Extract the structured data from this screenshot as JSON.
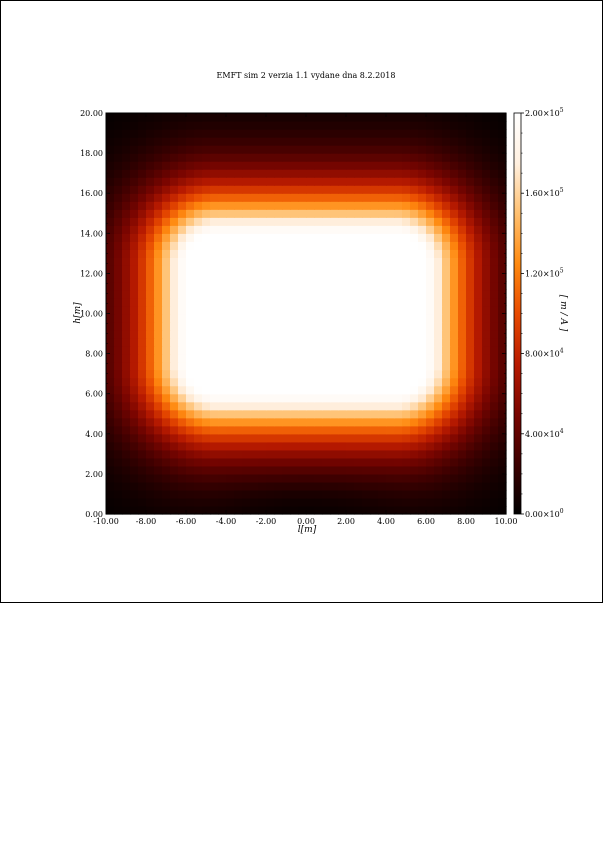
{
  "chart_data": {
    "type": "heatmap",
    "title": "EMFT sim 2 verzia 1.1 vydane dna 8.2.2018",
    "xlabel": "l[m]",
    "ylabel": "h[m]",
    "colorbar_label": "[ m / A ]",
    "xlim": [
      -10,
      10
    ],
    "ylim": [
      0,
      20
    ],
    "clim": [
      0,
      200000
    ],
    "x_ticks": [
      "-10.00",
      "-8.00",
      "-6.00",
      "-4.00",
      "-2.00",
      "0.00",
      "2.00",
      "4.00",
      "6.00",
      "8.00",
      "10.00"
    ],
    "y_ticks": [
      "0.00",
      "2.00",
      "4.00",
      "6.00",
      "8.00",
      "10.00",
      "12.00",
      "14.00",
      "16.00",
      "18.00",
      "20.00"
    ],
    "colorbar_ticks": [
      {
        "value": 0,
        "mantissa": "0.00×10",
        "exp": "0"
      },
      {
        "value": 40000,
        "mantissa": "4.00×10",
        "exp": "4"
      },
      {
        "value": 80000,
        "mantissa": "8.00×10",
        "exp": "4"
      },
      {
        "value": 120000,
        "mantissa": "1.20×10",
        "exp": "5"
      },
      {
        "value": 160000,
        "mantissa": "1.60×10",
        "exp": "5"
      },
      {
        "value": 200000,
        "mantissa": "2.00×10",
        "exp": "5"
      }
    ],
    "saturated_region": {
      "x_range": [
        -6,
        6
      ],
      "y_range": [
        6,
        14
      ],
      "value": 200000
    },
    "colormap": [
      "#000000",
      "#3d0000",
      "#7a0500",
      "#b81a00",
      "#e84a00",
      "#ff8a10",
      "#ffc070",
      "#fff0e0",
      "#ffffff"
    ]
  }
}
